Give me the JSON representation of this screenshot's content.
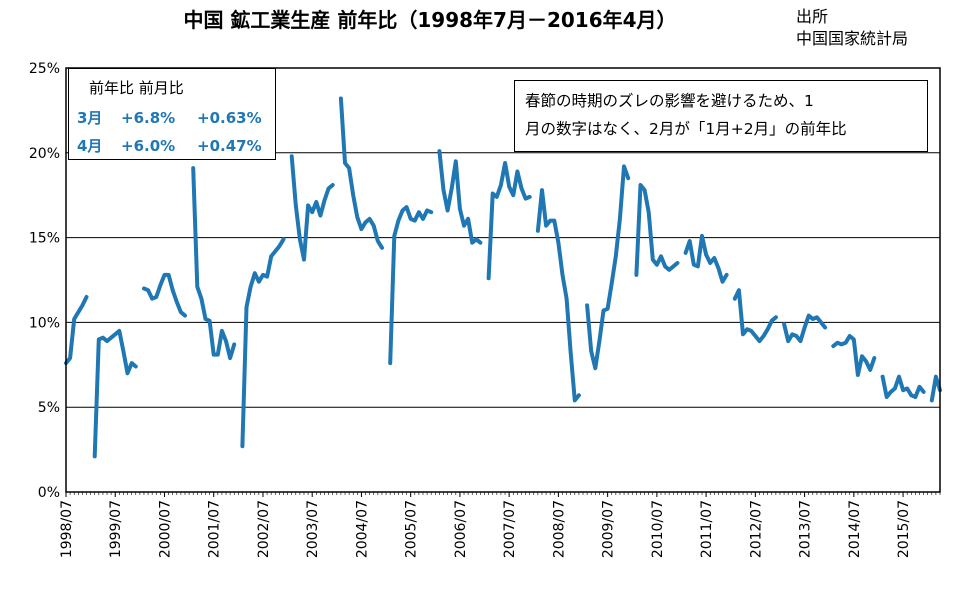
{
  "title": "中国 鉱工業生産  前年比（1998年7月－2016年4月）",
  "source": {
    "line1": "出所",
    "line2": "中国国家統計局"
  },
  "legend": {
    "header": "前年比  前月比",
    "rows": [
      {
        "month": "3月",
        "yoy": "+6.8%",
        "mom": "+0.63%"
      },
      {
        "month": "4月",
        "yoy": "+6.0%",
        "mom": "+0.47%"
      }
    ]
  },
  "note": {
    "line1": "春節の時期のズレの影響を避けるため、1",
    "line2": "月の数字はなく、2月が「1月+2月」の前年比"
  },
  "colors": {
    "series": "#1f77b4",
    "grid": "#000000"
  },
  "chart_data": {
    "type": "line",
    "ylim": [
      0,
      25
    ],
    "yticks": [
      0,
      5,
      10,
      15,
      20,
      25
    ],
    "ytick_labels": [
      "0%",
      "5%",
      "10%",
      "15%",
      "20%",
      "25%"
    ],
    "xticks": [
      "1998/07",
      "1999/07",
      "2000/07",
      "2001/07",
      "2002/07",
      "2003/07",
      "2004/07",
      "2005/07",
      "2006/07",
      "2007/07",
      "2008/07",
      "2009/07",
      "2010/07",
      "2011/07",
      "2012/07",
      "2013/07",
      "2014/07",
      "2015/07"
    ],
    "x_start": "1998/07",
    "x_end": "2016/04",
    "grid": "horizontal",
    "legend": "top-left",
    "segments": [
      [
        [
          "1998/07",
          7.6
        ],
        [
          "1998/08",
          7.9
        ],
        [
          "1998/09",
          10.2
        ],
        [
          "1998/10",
          10.6
        ],
        [
          "1998/11",
          11.0
        ],
        [
          "1998/12",
          11.5
        ]
      ],
      [
        [
          "1999/02",
          2.1
        ],
        [
          "1999/03",
          9.0
        ],
        [
          "1999/04",
          9.1
        ],
        [
          "1999/05",
          8.9
        ],
        [
          "1999/06",
          9.1
        ],
        [
          "1999/07",
          9.3
        ],
        [
          "1999/08",
          9.5
        ],
        [
          "1999/09",
          8.3
        ],
        [
          "1999/10",
          7.0
        ],
        [
          "1999/11",
          7.6
        ],
        [
          "1999/12",
          7.4
        ]
      ],
      [
        [
          "2000/02",
          12.0
        ],
        [
          "2000/03",
          11.9
        ],
        [
          "2000/04",
          11.4
        ],
        [
          "2000/05",
          11.5
        ],
        [
          "2000/06",
          12.2
        ],
        [
          "2000/07",
          12.8
        ],
        [
          "2000/08",
          12.8
        ],
        [
          "2000/09",
          11.9
        ],
        [
          "2000/10",
          11.2
        ],
        [
          "2000/11",
          10.6
        ],
        [
          "2000/12",
          10.4
        ]
      ],
      [
        [
          "2001/02",
          19.1
        ],
        [
          "2001/03",
          12.1
        ],
        [
          "2001/04",
          11.4
        ],
        [
          "2001/05",
          10.2
        ],
        [
          "2001/06",
          10.1
        ],
        [
          "2001/07",
          8.1
        ],
        [
          "2001/08",
          8.1
        ],
        [
          "2001/09",
          9.5
        ],
        [
          "2001/10",
          8.9
        ],
        [
          "2001/11",
          7.9
        ],
        [
          "2001/12",
          8.7
        ]
      ],
      [
        [
          "2002/02",
          2.7
        ],
        [
          "2002/03",
          10.9
        ],
        [
          "2002/04",
          12.1
        ],
        [
          "2002/05",
          12.9
        ],
        [
          "2002/06",
          12.4
        ],
        [
          "2002/07",
          12.8
        ],
        [
          "2002/08",
          12.7
        ],
        [
          "2002/09",
          13.9
        ],
        [
          "2002/10",
          14.2
        ],
        [
          "2002/11",
          14.5
        ],
        [
          "2002/12",
          14.9
        ]
      ],
      [
        [
          "2003/02",
          19.8
        ],
        [
          "2003/03",
          16.9
        ],
        [
          "2003/04",
          14.9
        ],
        [
          "2003/05",
          13.7
        ],
        [
          "2003/06",
          16.9
        ],
        [
          "2003/07",
          16.5
        ],
        [
          "2003/08",
          17.1
        ],
        [
          "2003/09",
          16.3
        ],
        [
          "2003/10",
          17.2
        ],
        [
          "2003/11",
          17.9
        ],
        [
          "2003/12",
          18.1
        ]
      ],
      [
        [
          "2004/02",
          23.2
        ],
        [
          "2004/03",
          19.4
        ],
        [
          "2004/04",
          19.1
        ],
        [
          "2004/05",
          17.5
        ],
        [
          "2004/06",
          16.2
        ],
        [
          "2004/07",
          15.5
        ],
        [
          "2004/08",
          15.9
        ],
        [
          "2004/09",
          16.1
        ],
        [
          "2004/10",
          15.7
        ],
        [
          "2004/11",
          14.8
        ],
        [
          "2004/12",
          14.4
        ]
      ],
      [
        [
          "2005/02",
          7.6
        ],
        [
          "2005/03",
          15.1
        ],
        [
          "2005/04",
          16.0
        ],
        [
          "2005/05",
          16.6
        ],
        [
          "2005/06",
          16.8
        ],
        [
          "2005/07",
          16.1
        ],
        [
          "2005/08",
          16.0
        ],
        [
          "2005/09",
          16.5
        ],
        [
          "2005/10",
          16.1
        ],
        [
          "2005/11",
          16.6
        ],
        [
          "2005/12",
          16.5
        ]
      ],
      [
        [
          "2006/02",
          20.1
        ],
        [
          "2006/03",
          17.8
        ],
        [
          "2006/04",
          16.6
        ],
        [
          "2006/05",
          17.9
        ],
        [
          "2006/06",
          19.5
        ],
        [
          "2006/07",
          16.7
        ],
        [
          "2006/08",
          15.7
        ],
        [
          "2006/09",
          16.1
        ],
        [
          "2006/10",
          14.7
        ],
        [
          "2006/11",
          14.9
        ],
        [
          "2006/12",
          14.7
        ]
      ],
      [
        [
          "2007/02",
          12.6
        ],
        [
          "2007/03",
          17.6
        ],
        [
          "2007/04",
          17.4
        ],
        [
          "2007/05",
          18.1
        ],
        [
          "2007/06",
          19.4
        ],
        [
          "2007/07",
          18.0
        ],
        [
          "2007/08",
          17.5
        ],
        [
          "2007/09",
          18.9
        ],
        [
          "2007/10",
          17.9
        ],
        [
          "2007/11",
          17.3
        ],
        [
          "2007/12",
          17.4
        ]
      ],
      [
        [
          "2008/02",
          15.4
        ],
        [
          "2008/03",
          17.8
        ],
        [
          "2008/04",
          15.7
        ],
        [
          "2008/05",
          16.0
        ],
        [
          "2008/06",
          16.0
        ],
        [
          "2008/07",
          14.7
        ],
        [
          "2008/08",
          12.8
        ],
        [
          "2008/09",
          11.4
        ],
        [
          "2008/10",
          8.2
        ],
        [
          "2008/11",
          5.4
        ],
        [
          "2008/12",
          5.7
        ]
      ],
      [
        [
          "2009/02",
          11.0
        ],
        [
          "2009/03",
          8.3
        ],
        [
          "2009/04",
          7.3
        ],
        [
          "2009/05",
          8.9
        ],
        [
          "2009/06",
          10.7
        ],
        [
          "2009/07",
          10.8
        ],
        [
          "2009/08",
          12.3
        ],
        [
          "2009/09",
          13.9
        ],
        [
          "2009/10",
          16.1
        ],
        [
          "2009/11",
          19.2
        ],
        [
          "2009/12",
          18.5
        ]
      ],
      [
        [
          "2010/02",
          12.8
        ],
        [
          "2010/03",
          18.1
        ],
        [
          "2010/04",
          17.8
        ],
        [
          "2010/05",
          16.5
        ],
        [
          "2010/06",
          13.7
        ],
        [
          "2010/07",
          13.4
        ],
        [
          "2010/08",
          13.9
        ],
        [
          "2010/09",
          13.3
        ],
        [
          "2010/10",
          13.1
        ],
        [
          "2010/11",
          13.3
        ],
        [
          "2010/12",
          13.5
        ]
      ],
      [
        [
          "2011/02",
          14.1
        ],
        [
          "2011/03",
          14.8
        ],
        [
          "2011/04",
          13.4
        ],
        [
          "2011/05",
          13.3
        ],
        [
          "2011/06",
          15.1
        ],
        [
          "2011/07",
          14.0
        ],
        [
          "2011/08",
          13.5
        ],
        [
          "2011/09",
          13.8
        ],
        [
          "2011/10",
          13.2
        ],
        [
          "2011/11",
          12.4
        ],
        [
          "2011/12",
          12.8
        ]
      ],
      [
        [
          "2012/02",
          11.4
        ],
        [
          "2012/03",
          11.9
        ],
        [
          "2012/04",
          9.3
        ],
        [
          "2012/05",
          9.6
        ],
        [
          "2012/06",
          9.5
        ],
        [
          "2012/07",
          9.2
        ],
        [
          "2012/08",
          8.9
        ],
        [
          "2012/09",
          9.2
        ],
        [
          "2012/10",
          9.6
        ],
        [
          "2012/11",
          10.1
        ],
        [
          "2012/12",
          10.3
        ]
      ],
      [
        [
          "2013/02",
          9.9
        ],
        [
          "2013/03",
          8.9
        ],
        [
          "2013/04",
          9.3
        ],
        [
          "2013/05",
          9.2
        ],
        [
          "2013/06",
          8.9
        ],
        [
          "2013/07",
          9.7
        ],
        [
          "2013/08",
          10.4
        ],
        [
          "2013/09",
          10.2
        ],
        [
          "2013/10",
          10.3
        ],
        [
          "2013/11",
          10.0
        ],
        [
          "2013/12",
          9.7
        ]
      ],
      [
        [
          "2014/02",
          8.6
        ],
        [
          "2014/03",
          8.8
        ],
        [
          "2014/04",
          8.7
        ],
        [
          "2014/05",
          8.8
        ],
        [
          "2014/06",
          9.2
        ],
        [
          "2014/07",
          9.0
        ],
        [
          "2014/08",
          6.9
        ],
        [
          "2014/09",
          8.0
        ],
        [
          "2014/10",
          7.7
        ],
        [
          "2014/11",
          7.2
        ],
        [
          "2014/12",
          7.9
        ]
      ],
      [
        [
          "2015/02",
          6.8
        ],
        [
          "2015/03",
          5.6
        ],
        [
          "2015/04",
          5.9
        ],
        [
          "2015/05",
          6.1
        ],
        [
          "2015/06",
          6.8
        ],
        [
          "2015/07",
          6.0
        ],
        [
          "2015/08",
          6.1
        ],
        [
          "2015/09",
          5.7
        ],
        [
          "2015/10",
          5.6
        ],
        [
          "2015/11",
          6.2
        ],
        [
          "2015/12",
          5.9
        ]
      ],
      [
        [
          "2016/02",
          5.4
        ],
        [
          "2016/03",
          6.8
        ],
        [
          "2016/04",
          6.0
        ]
      ]
    ]
  }
}
